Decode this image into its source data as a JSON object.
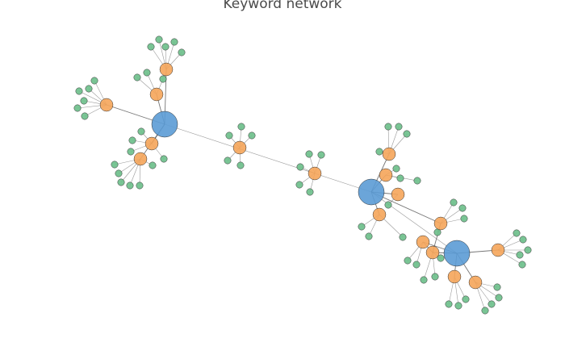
{
  "title": "Keyword network",
  "colors": {
    "hub": "#5b9bd5",
    "mid": "#f5a55a",
    "leaf": "#6bbf8a",
    "edge": "#555555",
    "node_stroke": "#333333"
  }
}
